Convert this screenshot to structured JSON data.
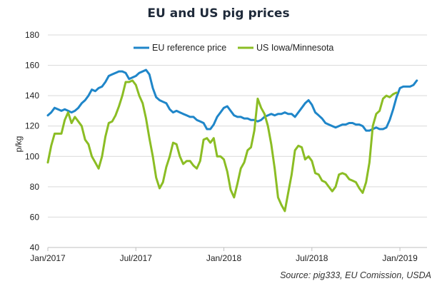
{
  "chart_data": {
    "type": "line",
    "title": "EU and US pig prices",
    "ylabel": "p/kg",
    "xlabel": "",
    "ylim": [
      40,
      180
    ],
    "yticks": [
      40,
      60,
      80,
      100,
      120,
      140,
      160,
      180
    ],
    "xlim": [
      0,
      112
    ],
    "xticks": [
      {
        "x": 0,
        "label": "Jan/2017"
      },
      {
        "x": 26,
        "label": "Jul/2017"
      },
      {
        "x": 52,
        "label": "Jan/2018"
      },
      {
        "x": 78,
        "label": "Jul/2018"
      },
      {
        "x": 104,
        "label": "Jan/2019"
      }
    ],
    "grid": "horizontal",
    "legend": "top-center",
    "source": "Source:  pig333,  EU Comission,  USDA",
    "series": [
      {
        "name": "EU reference price",
        "color": "#1f86c9",
        "points": [
          [
            0,
            127
          ],
          [
            1,
            129
          ],
          [
            2,
            132
          ],
          [
            3,
            131
          ],
          [
            4,
            130
          ],
          [
            5,
            131
          ],
          [
            6,
            130
          ],
          [
            7,
            129
          ],
          [
            8,
            130
          ],
          [
            9,
            132
          ],
          [
            10,
            135
          ],
          [
            11,
            137
          ],
          [
            12,
            140
          ],
          [
            13,
            144
          ],
          [
            14,
            143
          ],
          [
            15,
            145
          ],
          [
            16,
            146
          ],
          [
            17,
            149
          ],
          [
            18,
            153
          ],
          [
            19,
            154
          ],
          [
            20,
            155
          ],
          [
            21,
            156
          ],
          [
            22,
            156
          ],
          [
            23,
            155
          ],
          [
            24,
            151
          ],
          [
            25,
            152
          ],
          [
            26,
            153
          ],
          [
            27,
            155
          ],
          [
            28,
            156
          ],
          [
            29,
            157
          ],
          [
            30,
            154
          ],
          [
            31,
            145
          ],
          [
            32,
            139
          ],
          [
            33,
            137
          ],
          [
            34,
            136
          ],
          [
            35,
            135
          ],
          [
            36,
            131
          ],
          [
            37,
            129
          ],
          [
            38,
            130
          ],
          [
            39,
            129
          ],
          [
            40,
            128
          ],
          [
            41,
            127
          ],
          [
            42,
            126
          ],
          [
            43,
            126
          ],
          [
            44,
            124
          ],
          [
            45,
            123
          ],
          [
            46,
            122
          ],
          [
            47,
            118
          ],
          [
            48,
            118
          ],
          [
            49,
            121
          ],
          [
            50,
            126
          ],
          [
            51,
            129
          ],
          [
            52,
            132
          ],
          [
            53,
            133
          ],
          [
            54,
            130
          ],
          [
            55,
            127
          ],
          [
            56,
            126
          ],
          [
            57,
            126
          ],
          [
            58,
            125
          ],
          [
            59,
            125
          ],
          [
            60,
            124
          ],
          [
            61,
            124
          ],
          [
            62,
            123
          ],
          [
            63,
            124
          ],
          [
            64,
            126
          ],
          [
            65,
            127
          ],
          [
            66,
            128
          ],
          [
            67,
            127
          ],
          [
            68,
            128
          ],
          [
            69,
            128
          ],
          [
            70,
            129
          ],
          [
            71,
            128
          ],
          [
            72,
            128
          ],
          [
            73,
            126
          ],
          [
            74,
            129
          ],
          [
            75,
            132
          ],
          [
            76,
            135
          ],
          [
            77,
            137
          ],
          [
            78,
            134
          ],
          [
            79,
            129
          ],
          [
            80,
            127
          ],
          [
            81,
            125
          ],
          [
            82,
            122
          ],
          [
            83,
            121
          ],
          [
            84,
            120
          ],
          [
            85,
            119
          ],
          [
            86,
            120
          ],
          [
            87,
            121
          ],
          [
            88,
            121
          ],
          [
            89,
            122
          ],
          [
            90,
            122
          ],
          [
            91,
            121
          ],
          [
            92,
            121
          ],
          [
            93,
            120
          ],
          [
            94,
            117
          ],
          [
            95,
            117
          ],
          [
            96,
            118
          ],
          [
            97,
            119
          ],
          [
            98,
            118
          ],
          [
            99,
            118
          ],
          [
            100,
            119
          ],
          [
            101,
            124
          ],
          [
            102,
            131
          ],
          [
            103,
            139
          ],
          [
            104,
            145
          ],
          [
            105,
            146
          ],
          [
            106,
            146
          ],
          [
            107,
            146
          ],
          [
            108,
            147
          ],
          [
            109,
            150
          ]
        ]
      },
      {
        "name": "US Iowa/Minnesota",
        "color": "#8bbd24",
        "points": [
          [
            0,
            96
          ],
          [
            1,
            107
          ],
          [
            2,
            115
          ],
          [
            3,
            115
          ],
          [
            4,
            115
          ],
          [
            5,
            124
          ],
          [
            6,
            129
          ],
          [
            7,
            122
          ],
          [
            8,
            126
          ],
          [
            9,
            123
          ],
          [
            10,
            120
          ],
          [
            11,
            111
          ],
          [
            12,
            108
          ],
          [
            13,
            100
          ],
          [
            14,
            96
          ],
          [
            15,
            92
          ],
          [
            16,
            100
          ],
          [
            17,
            113
          ],
          [
            18,
            122
          ],
          [
            19,
            123
          ],
          [
            20,
            127
          ],
          [
            21,
            133
          ],
          [
            22,
            140
          ],
          [
            23,
            149
          ],
          [
            24,
            149
          ],
          [
            25,
            150
          ],
          [
            26,
            147
          ],
          [
            27,
            140
          ],
          [
            28,
            135
          ],
          [
            29,
            125
          ],
          [
            30,
            112
          ],
          [
            31,
            100
          ],
          [
            32,
            86
          ],
          [
            33,
            79
          ],
          [
            34,
            83
          ],
          [
            35,
            93
          ],
          [
            36,
            100
          ],
          [
            37,
            109
          ],
          [
            38,
            108
          ],
          [
            39,
            100
          ],
          [
            40,
            95
          ],
          [
            41,
            97
          ],
          [
            42,
            97
          ],
          [
            43,
            94
          ],
          [
            44,
            92
          ],
          [
            45,
            97
          ],
          [
            46,
            111
          ],
          [
            47,
            112
          ],
          [
            48,
            109
          ],
          [
            49,
            112
          ],
          [
            50,
            100
          ],
          [
            51,
            100
          ],
          [
            52,
            98
          ],
          [
            53,
            90
          ],
          [
            54,
            78
          ],
          [
            55,
            73
          ],
          [
            56,
            82
          ],
          [
            57,
            92
          ],
          [
            58,
            96
          ],
          [
            59,
            104
          ],
          [
            60,
            106
          ],
          [
            61,
            117
          ],
          [
            62,
            138
          ],
          [
            63,
            132
          ],
          [
            64,
            128
          ],
          [
            65,
            120
          ],
          [
            66,
            108
          ],
          [
            67,
            92
          ],
          [
            68,
            73
          ],
          [
            69,
            68
          ],
          [
            70,
            64
          ],
          [
            71,
            76
          ],
          [
            72,
            88
          ],
          [
            73,
            104
          ],
          [
            74,
            107
          ],
          [
            75,
            106
          ],
          [
            76,
            98
          ],
          [
            77,
            100
          ],
          [
            78,
            97
          ],
          [
            79,
            89
          ],
          [
            80,
            88
          ],
          [
            81,
            84
          ],
          [
            82,
            83
          ],
          [
            83,
            80
          ],
          [
            84,
            77
          ],
          [
            85,
            80
          ],
          [
            86,
            88
          ],
          [
            87,
            89
          ],
          [
            88,
            88
          ],
          [
            89,
            85
          ],
          [
            90,
            84
          ],
          [
            91,
            83
          ],
          [
            92,
            79
          ],
          [
            93,
            76
          ],
          [
            94,
            83
          ],
          [
            95,
            96
          ],
          [
            96,
            120
          ],
          [
            97,
            128
          ],
          [
            98,
            130
          ],
          [
            99,
            138
          ],
          [
            100,
            140
          ],
          [
            101,
            139
          ],
          [
            102,
            141
          ],
          [
            103,
            142
          ]
        ]
      }
    ]
  }
}
